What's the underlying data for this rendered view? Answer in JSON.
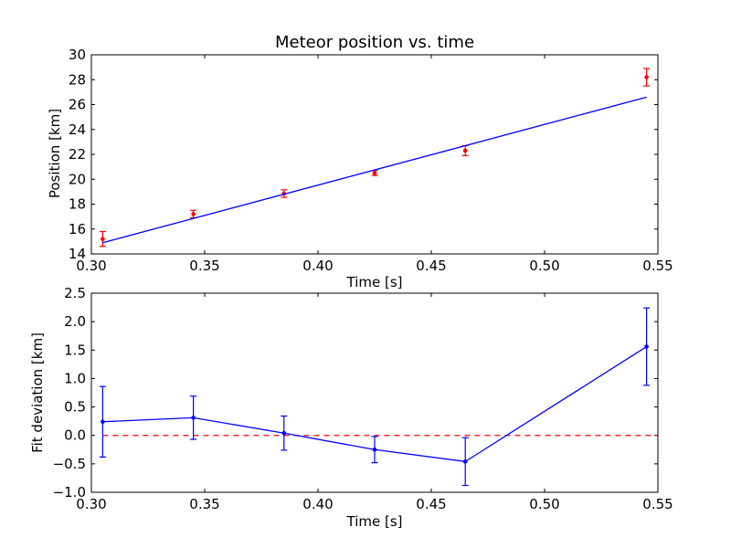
{
  "chart_data": [
    {
      "type": "scatter",
      "title": "Meteor position vs. time",
      "xlabel": "Time [s]",
      "ylabel": "Position [km]",
      "xlim": [
        0.3,
        0.55
      ],
      "ylim": [
        14,
        30
      ],
      "xticks": [
        "0.30",
        "0.35",
        "0.40",
        "0.45",
        "0.50",
        "0.55"
      ],
      "yticks": [
        "14",
        "16",
        "18",
        "20",
        "22",
        "24",
        "26",
        "28",
        "30"
      ],
      "grid": false,
      "series": [
        {
          "kind": "errorbar",
          "color": "#ff0000",
          "x": [
            0.305,
            0.345,
            0.385,
            0.425,
            0.465,
            0.545
          ],
          "y": [
            15.2,
            17.2,
            18.85,
            20.5,
            22.3,
            28.2
          ],
          "err": [
            0.6,
            0.3,
            0.3,
            0.2,
            0.4,
            0.7
          ]
        },
        {
          "kind": "fit-line",
          "color": "#0000ff",
          "x": [
            0.305,
            0.545
          ],
          "y": [
            14.9,
            26.6
          ]
        }
      ]
    },
    {
      "type": "line",
      "title": "",
      "xlabel": "Time [s]",
      "ylabel": "Fit deviation [km]",
      "xlim": [
        0.3,
        0.55
      ],
      "ylim": [
        -1.0,
        2.5
      ],
      "xticks": [
        "0.30",
        "0.35",
        "0.40",
        "0.45",
        "0.50",
        "0.55"
      ],
      "yticks": [
        "−1.0",
        "−0.5",
        "0.0",
        "0.5",
        "1.0",
        "1.5",
        "2.0",
        "2.5"
      ],
      "grid": false,
      "reference_line": {
        "y": 0.0,
        "color": "#ff0000",
        "style": "dashed"
      },
      "series": [
        {
          "kind": "errorbar-line",
          "color": "#0000ff",
          "x": [
            0.305,
            0.345,
            0.385,
            0.425,
            0.465,
            0.545
          ],
          "y": [
            0.24,
            0.31,
            0.04,
            -0.25,
            -0.46,
            1.56
          ],
          "err": [
            0.62,
            0.38,
            0.3,
            0.23,
            0.42,
            0.68
          ]
        }
      ]
    }
  ]
}
